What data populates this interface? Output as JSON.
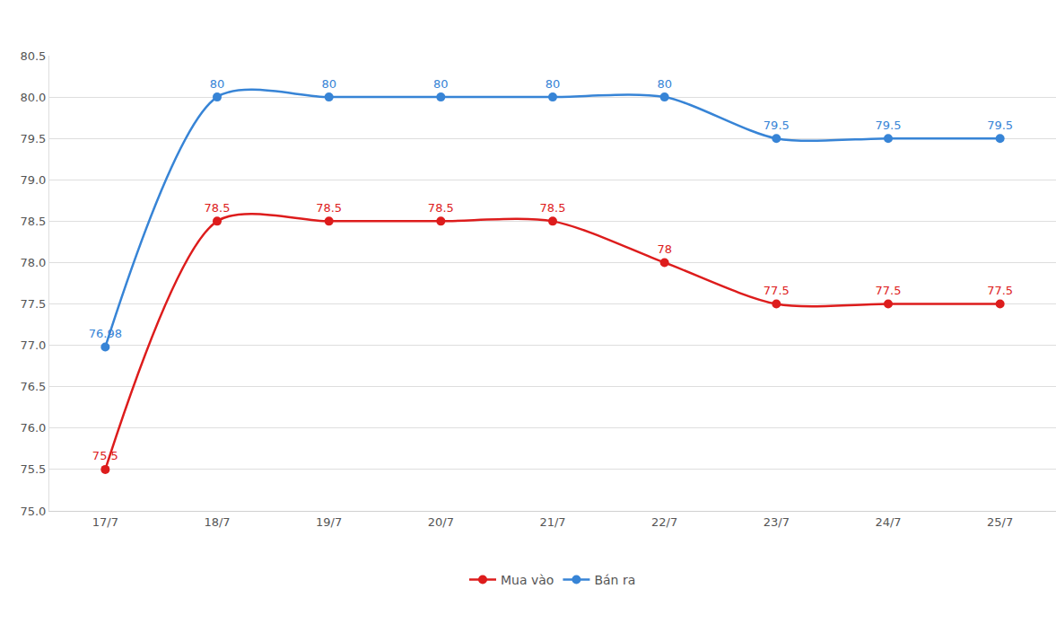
{
  "chart_data": {
    "type": "line",
    "categories": [
      "17/7",
      "18/7",
      "19/7",
      "20/7",
      "21/7",
      "22/7",
      "23/7",
      "24/7",
      "25/7"
    ],
    "series": [
      {
        "name": "Mua vào",
        "color": "#dd1c1c",
        "values": [
          75.5,
          78.5,
          78.5,
          78.5,
          78.5,
          78,
          77.5,
          77.5,
          77.5
        ]
      },
      {
        "name": "Bán ra",
        "color": "#3784d6",
        "values": [
          76.98,
          80,
          80,
          80,
          80,
          80,
          79.5,
          79.5,
          79.5
        ]
      }
    ],
    "ylim": [
      75,
      80.5
    ],
    "yticks": [
      {
        "value": 75,
        "label": "75.0"
      },
      75.5,
      {
        "value": 76,
        "label": "76.0"
      },
      76.5,
      {
        "value": 77,
        "label": "77.0"
      },
      77.5,
      {
        "value": 78,
        "label": "78.0"
      },
      78.5,
      {
        "value": 79,
        "label": "79.0"
      },
      79.5,
      {
        "value": 80,
        "label": "80.0"
      },
      80.5
    ],
    "grid": true,
    "legend": "bottom",
    "data_labels": true,
    "marker": "circle",
    "line_style": "solid"
  }
}
